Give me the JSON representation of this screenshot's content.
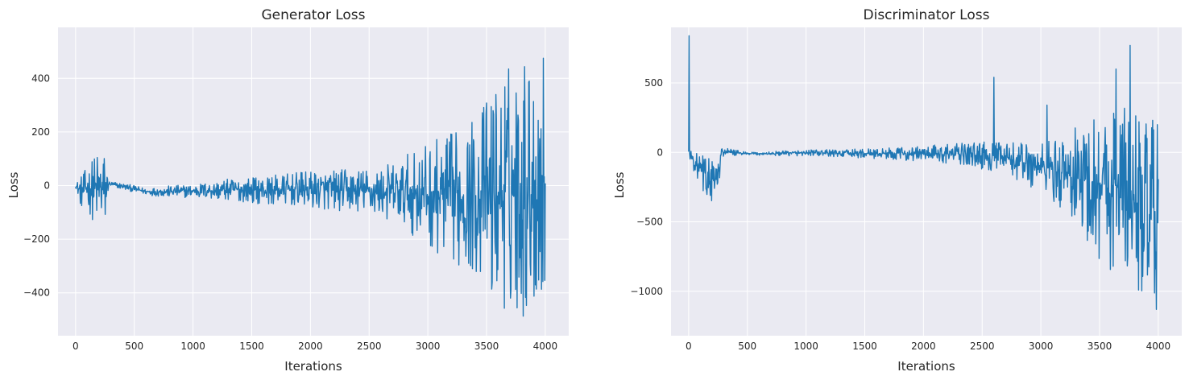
{
  "chart_data": [
    {
      "type": "line",
      "title": "Generator Loss",
      "xlabel": "Iterations",
      "ylabel": "Loss",
      "xlim": [
        -150,
        4200
      ],
      "ylim": [
        -560,
        590
      ],
      "xticks": [
        0,
        500,
        1000,
        1500,
        2000,
        2500,
        3000,
        3500,
        4000
      ],
      "yticks": [
        -400,
        -200,
        0,
        200,
        400
      ],
      "ytick_labels": [
        "−400",
        "−200",
        "0",
        "200",
        "400"
      ],
      "grid": true,
      "series_color": "#1f77b4",
      "envelope": [
        [
          0,
          8,
          -5
        ],
        [
          50,
          40,
          -90
        ],
        [
          100,
          70,
          -80
        ],
        [
          150,
          110,
          -140
        ],
        [
          200,
          150,
          -175
        ],
        [
          260,
          130,
          -170
        ],
        [
          280,
          18,
          -5
        ],
        [
          400,
          10,
          -15
        ],
        [
          600,
          -10,
          -35
        ],
        [
          800,
          0,
          -45
        ],
        [
          1000,
          5,
          -45
        ],
        [
          1200,
          20,
          -55
        ],
        [
          1400,
          30,
          -60
        ],
        [
          1600,
          35,
          -70
        ],
        [
          1800,
          45,
          -75
        ],
        [
          2000,
          55,
          -85
        ],
        [
          2200,
          60,
          -95
        ],
        [
          2400,
          65,
          -100
        ],
        [
          2600,
          70,
          -120
        ],
        [
          2800,
          110,
          -160
        ],
        [
          3000,
          160,
          -230
        ],
        [
          3200,
          200,
          -290
        ],
        [
          3400,
          260,
          -330
        ],
        [
          3600,
          420,
          -470
        ],
        [
          3800,
          510,
          -490
        ],
        [
          3950,
          500,
          -480
        ],
        [
          4000,
          540,
          -480
        ]
      ]
    },
    {
      "type": "line",
      "title": "Discriminator Loss",
      "xlabel": "Iterations",
      "ylabel": "Loss",
      "xlim": [
        -150,
        4200
      ],
      "ylim": [
        -1320,
        900
      ],
      "xticks": [
        0,
        500,
        1000,
        1500,
        2000,
        2500,
        3000,
        3500,
        4000
      ],
      "yticks": [
        -1000,
        -500,
        0,
        500
      ],
      "ytick_labels": [
        "−1000",
        "−500",
        "0",
        "500"
      ],
      "grid": true,
      "series_color": "#1f77b4",
      "spikes": [
        [
          5,
          840
        ],
        [
          2600,
          540
        ],
        [
          3050,
          340
        ],
        [
          3640,
          600
        ],
        [
          3760,
          770
        ],
        [
          3990,
          200
        ]
      ],
      "envelope": [
        [
          0,
          30,
          -20
        ],
        [
          50,
          0,
          -150
        ],
        [
          100,
          -10,
          -250
        ],
        [
          150,
          -20,
          -330
        ],
        [
          200,
          -40,
          -400
        ],
        [
          260,
          -50,
          -280
        ],
        [
          280,
          40,
          -30
        ],
        [
          500,
          0,
          -20
        ],
        [
          800,
          10,
          -25
        ],
        [
          1000,
          20,
          -25
        ],
        [
          1300,
          20,
          -35
        ],
        [
          1600,
          30,
          -45
        ],
        [
          1900,
          40,
          -60
        ],
        [
          2200,
          60,
          -80
        ],
        [
          2500,
          80,
          -120
        ],
        [
          2700,
          70,
          -160
        ],
        [
          2900,
          90,
          -250
        ],
        [
          3100,
          100,
          -350
        ],
        [
          3300,
          200,
          -550
        ],
        [
          3500,
          350,
          -800
        ],
        [
          3700,
          400,
          -900
        ],
        [
          3850,
          300,
          -1100
        ],
        [
          4000,
          200,
          -1200
        ]
      ]
    }
  ]
}
